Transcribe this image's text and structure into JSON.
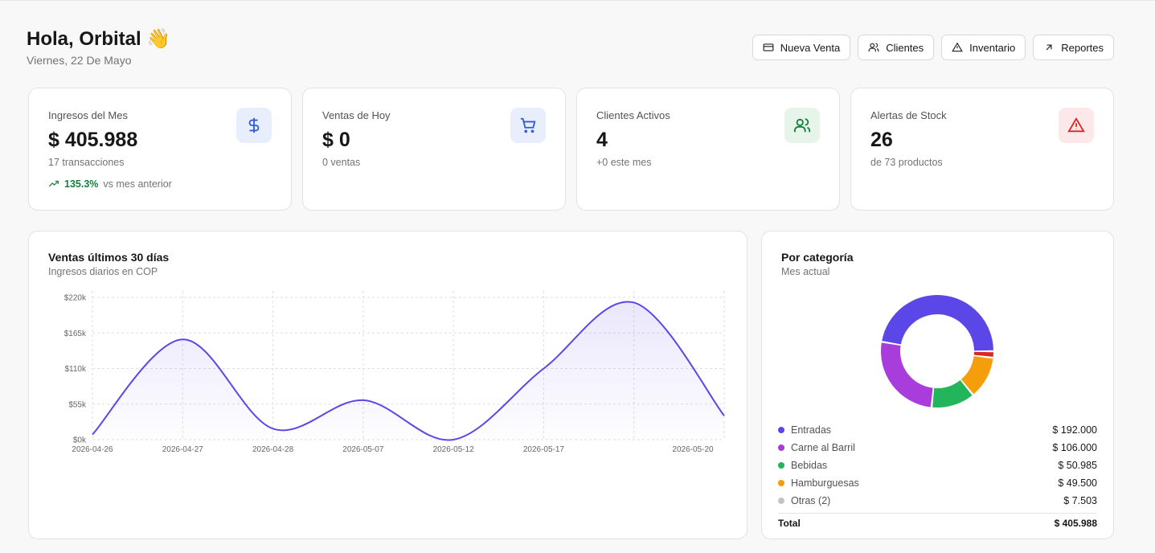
{
  "header": {
    "title": "Hola, Orbital 👋",
    "subtitle": "Viernes, 22 De Mayo"
  },
  "actions": [
    "Nueva Venta",
    "Clientes",
    "Inventario",
    "Reportes"
  ],
  "stats": [
    {
      "label": "Ingresos del Mes",
      "value": "$ 405.988",
      "sub": "17 transacciones",
      "trend": "135.3%",
      "trend_text": "vs mes anterior"
    },
    {
      "label": "Ventas de Hoy",
      "value": "$ 0",
      "sub": "0 ventas"
    },
    {
      "label": "Clientes Activos",
      "value": "4",
      "sub": "+0 este mes"
    },
    {
      "label": "Alertas de Stock",
      "value": "26",
      "sub": "de 73 productos"
    }
  ],
  "chart_data": [
    {
      "type": "line",
      "title": "Ventas últimos 30 días",
      "subtitle": "Ingresos diarios en COP",
      "categories": [
        "2026-04-26",
        "2026-04-27",
        "2026-04-28",
        "2026-05-07",
        "2026-05-12",
        "2026-05-17",
        null,
        "2026-05-20"
      ],
      "values": [
        8000,
        155000,
        17000,
        61000,
        0,
        110000,
        212000,
        37000
      ],
      "color": "#5b47e8",
      "ylim": [
        0,
        220000
      ],
      "yticks": [
        {
          "value": 0,
          "label": "$0k"
        },
        {
          "value": 55000,
          "label": "$55k"
        },
        {
          "value": 110000,
          "label": "$110k"
        },
        {
          "value": 165000,
          "label": "$165k"
        },
        {
          "value": 220000,
          "label": "$220k"
        }
      ],
      "grid": true
    },
    {
      "type": "donut",
      "title": "Por categoría",
      "subtitle": "Mes actual",
      "categories": [
        "Entradas",
        "Carne al Barril",
        "Bebidas",
        "Hamburguesas",
        "Otras (2)"
      ],
      "values": [
        192000,
        106000,
        50985,
        49500,
        7503
      ],
      "value_labels": [
        "$ 192.000",
        "$ 106.000",
        "$ 50.985",
        "$ 49.500",
        "$ 7.503"
      ],
      "colors": [
        "#5b47e8",
        "#a93ddb",
        "#22b55c",
        "#f59e0b",
        "#dc2626"
      ],
      "legend_colors": [
        "#5b47e8",
        "#a93ddb",
        "#22b55c",
        "#f59e0b",
        "#c4c4c4"
      ],
      "total_label": "Total",
      "total": 405988,
      "total_value_label": "$ 405.988"
    }
  ]
}
